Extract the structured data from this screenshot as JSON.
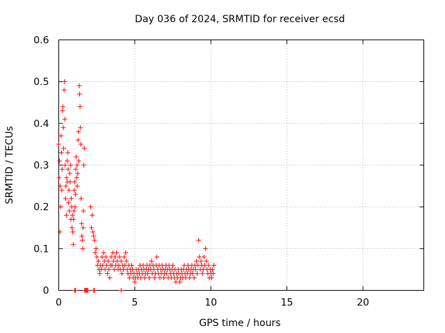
{
  "chart_data": {
    "type": "scatter",
    "title": "Day 036 of 2024, SRMTID for receiver ecsd",
    "xlabel": "GPS time / hours",
    "ylabel": "SRMTID / TECUs",
    "xlim": [
      0,
      24
    ],
    "ylim": [
      0,
      0.6
    ],
    "xticks": [
      0,
      5,
      10,
      15,
      20
    ],
    "yticks": [
      0,
      0.1,
      0.2,
      0.3,
      0.4,
      0.5,
      0.6
    ],
    "xtick_labels": [
      "0",
      "5",
      "10",
      "15",
      "20"
    ],
    "ytick_labels": [
      "0",
      "0.1",
      "0.2",
      "0.3",
      "0.4",
      "0.5",
      "0.6"
    ],
    "grid": true,
    "marker": "+",
    "color": "#ff0000",
    "series": [
      {
        "name": "SRMTID",
        "points": [
          [
            0.0,
            0.35
          ],
          [
            0.02,
            0.27
          ],
          [
            0.05,
            0.31
          ],
          [
            0.08,
            0.14
          ],
          [
            0.1,
            0.25
          ],
          [
            0.12,
            0.2
          ],
          [
            0.15,
            0.37
          ],
          [
            0.18,
            0.33
          ],
          [
            0.2,
            0.24
          ],
          [
            0.22,
            0.29
          ],
          [
            0.25,
            0.43
          ],
          [
            0.27,
            0.44
          ],
          [
            0.3,
            0.39
          ],
          [
            0.32,
            0.34
          ],
          [
            0.35,
            0.48
          ],
          [
            0.37,
            0.5
          ],
          [
            0.4,
            0.41
          ],
          [
            0.42,
            0.3
          ],
          [
            0.45,
            0.22
          ],
          [
            0.47,
            0.25
          ],
          [
            0.5,
            0.18
          ],
          [
            0.52,
            0.27
          ],
          [
            0.55,
            0.31
          ],
          [
            0.57,
            0.26
          ],
          [
            0.6,
            0.33
          ],
          [
            0.62,
            0.29
          ],
          [
            0.65,
            0.21
          ],
          [
            0.67,
            0.24
          ],
          [
            0.7,
            0.19
          ],
          [
            0.72,
            0.28
          ],
          [
            0.75,
            0.26
          ],
          [
            0.78,
            0.3
          ],
          [
            0.8,
            0.17
          ],
          [
            0.82,
            0.22
          ],
          [
            0.85,
            0.2
          ],
          [
            0.87,
            0.15
          ],
          [
            0.9,
            0.18
          ],
          [
            0.92,
            0.14
          ],
          [
            0.95,
            0.11
          ],
          [
            0.98,
            0.17
          ],
          [
            1.0,
            0.19
          ],
          [
            1.02,
            0.24
          ],
          [
            1.05,
            0.26
          ],
          [
            1.07,
            0.2
          ],
          [
            1.1,
            0.23
          ],
          [
            1.12,
            0.29
          ],
          [
            1.15,
            0.32
          ],
          [
            1.18,
            0.27
          ],
          [
            1.2,
            0.3
          ],
          [
            1.22,
            0.25
          ],
          [
            1.25,
            0.28
          ],
          [
            1.27,
            0.36
          ],
          [
            1.3,
            0.38
          ],
          [
            1.32,
            0.31
          ],
          [
            1.35,
            0.49
          ],
          [
            1.37,
            0.47
          ],
          [
            1.4,
            0.44
          ],
          [
            1.42,
            0.39
          ],
          [
            1.45,
            0.35
          ],
          [
            1.47,
            0.22
          ],
          [
            1.5,
            0.16
          ],
          [
            1.52,
            0.13
          ],
          [
            1.55,
            0.12
          ],
          [
            1.58,
            0.1
          ],
          [
            1.6,
            0.15
          ],
          [
            1.62,
            0.19
          ],
          [
            1.65,
            0.3
          ],
          [
            1.68,
            0.34
          ],
          [
            1.7,
            0.0
          ],
          [
            1.75,
            0.0
          ],
          [
            1.8,
            0.0
          ],
          [
            1.85,
            0.0
          ],
          [
            1.9,
            0.0
          ],
          [
            2.3,
            0.0
          ],
          [
            2.35,
            0.0
          ],
          [
            1.05,
            0.0
          ],
          [
            1.1,
            0.0
          ],
          [
            4.1,
            0.0
          ],
          [
            2.1,
            0.2
          ],
          [
            2.15,
            0.15
          ],
          [
            2.2,
            0.18
          ],
          [
            2.25,
            0.14
          ],
          [
            2.3,
            0.13
          ],
          [
            2.35,
            0.12
          ],
          [
            2.4,
            0.09
          ],
          [
            2.45,
            0.1
          ],
          [
            2.5,
            0.08
          ],
          [
            2.55,
            0.06
          ],
          [
            2.6,
            0.07
          ],
          [
            2.65,
            0.05
          ],
          [
            2.7,
            0.04
          ],
          [
            2.75,
            0.06
          ],
          [
            2.8,
            0.05
          ],
          [
            2.85,
            0.08
          ],
          [
            2.9,
            0.06
          ],
          [
            2.95,
            0.09
          ],
          [
            3.0,
            0.07
          ],
          [
            3.05,
            0.05
          ],
          [
            3.1,
            0.08
          ],
          [
            3.15,
            0.06
          ],
          [
            3.2,
            0.04
          ],
          [
            3.25,
            0.07
          ],
          [
            3.3,
            0.05
          ],
          [
            3.35,
            0.03
          ],
          [
            3.4,
            0.06
          ],
          [
            3.45,
            0.08
          ],
          [
            3.5,
            0.06
          ],
          [
            3.55,
            0.09
          ],
          [
            3.6,
            0.07
          ],
          [
            3.65,
            0.05
          ],
          [
            3.7,
            0.08
          ],
          [
            3.75,
            0.06
          ],
          [
            3.8,
            0.09
          ],
          [
            3.85,
            0.07
          ],
          [
            3.9,
            0.05
          ],
          [
            3.95,
            0.06
          ],
          [
            4.0,
            0.08
          ],
          [
            4.05,
            0.05
          ],
          [
            4.1,
            0.07
          ],
          [
            4.15,
            0.04
          ],
          [
            4.2,
            0.06
          ],
          [
            4.25,
            0.05
          ],
          [
            4.3,
            0.08
          ],
          [
            4.35,
            0.06
          ],
          [
            4.4,
            0.09
          ],
          [
            4.45,
            0.07
          ],
          [
            4.5,
            0.05
          ],
          [
            4.55,
            0.04
          ],
          [
            4.6,
            0.06
          ],
          [
            4.65,
            0.03
          ],
          [
            4.7,
            0.05
          ],
          [
            4.75,
            0.04
          ],
          [
            4.8,
            0.06
          ],
          [
            4.85,
            0.05
          ],
          [
            4.9,
            0.03
          ],
          [
            4.95,
            0.04
          ],
          [
            5.0,
            0.02
          ],
          [
            5.05,
            0.03
          ],
          [
            5.1,
            0.05
          ],
          [
            5.15,
            0.04
          ],
          [
            5.2,
            0.03
          ],
          [
            5.25,
            0.05
          ],
          [
            5.3,
            0.04
          ],
          [
            5.35,
            0.06
          ],
          [
            5.4,
            0.03
          ],
          [
            5.45,
            0.05
          ],
          [
            5.5,
            0.04
          ],
          [
            5.55,
            0.06
          ],
          [
            5.6,
            0.05
          ],
          [
            5.65,
            0.03
          ],
          [
            5.7,
            0.04
          ],
          [
            5.75,
            0.05
          ],
          [
            5.8,
            0.06
          ],
          [
            5.85,
            0.04
          ],
          [
            5.9,
            0.05
          ],
          [
            5.95,
            0.03
          ],
          [
            6.0,
            0.06
          ],
          [
            6.05,
            0.05
          ],
          [
            6.1,
            0.07
          ],
          [
            6.15,
            0.04
          ],
          [
            6.2,
            0.06
          ],
          [
            6.25,
            0.05
          ],
          [
            6.3,
            0.03
          ],
          [
            6.35,
            0.04
          ],
          [
            6.4,
            0.06
          ],
          [
            6.45,
            0.08
          ],
          [
            6.5,
            0.05
          ],
          [
            6.55,
            0.04
          ],
          [
            6.6,
            0.06
          ],
          [
            6.65,
            0.03
          ],
          [
            6.7,
            0.05
          ],
          [
            6.75,
            0.04
          ],
          [
            6.8,
            0.06
          ],
          [
            6.85,
            0.05
          ],
          [
            6.9,
            0.03
          ],
          [
            6.95,
            0.04
          ],
          [
            7.0,
            0.05
          ],
          [
            7.05,
            0.06
          ],
          [
            7.1,
            0.04
          ],
          [
            7.15,
            0.05
          ],
          [
            7.2,
            0.03
          ],
          [
            7.25,
            0.06
          ],
          [
            7.3,
            0.05
          ],
          [
            7.35,
            0.04
          ],
          [
            7.4,
            0.03
          ],
          [
            7.45,
            0.05
          ],
          [
            7.5,
            0.06
          ],
          [
            7.55,
            0.04
          ],
          [
            7.6,
            0.03
          ],
          [
            7.65,
            0.05
          ],
          [
            7.7,
            0.02
          ],
          [
            7.75,
            0.04
          ],
          [
            7.8,
            0.03
          ],
          [
            7.85,
            0.05
          ],
          [
            7.9,
            0.04
          ],
          [
            7.95,
            0.02
          ],
          [
            8.0,
            0.03
          ],
          [
            8.05,
            0.05
          ],
          [
            8.1,
            0.04
          ],
          [
            8.15,
            0.03
          ],
          [
            8.2,
            0.05
          ],
          [
            8.25,
            0.06
          ],
          [
            8.3,
            0.04
          ],
          [
            8.35,
            0.03
          ],
          [
            8.4,
            0.05
          ],
          [
            8.45,
            0.04
          ],
          [
            8.5,
            0.06
          ],
          [
            8.55,
            0.05
          ],
          [
            8.6,
            0.03
          ],
          [
            8.65,
            0.04
          ],
          [
            8.7,
            0.05
          ],
          [
            8.75,
            0.06
          ],
          [
            8.8,
            0.04
          ],
          [
            8.85,
            0.05
          ],
          [
            8.9,
            0.03
          ],
          [
            8.95,
            0.06
          ],
          [
            9.0,
            0.05
          ],
          [
            9.05,
            0.07
          ],
          [
            9.1,
            0.04
          ],
          [
            9.15,
            0.06
          ],
          [
            9.2,
            0.12
          ],
          [
            9.25,
            0.08
          ],
          [
            9.3,
            0.05
          ],
          [
            9.35,
            0.07
          ],
          [
            9.4,
            0.06
          ],
          [
            9.45,
            0.04
          ],
          [
            9.5,
            0.05
          ],
          [
            9.55,
            0.08
          ],
          [
            9.6,
            0.06
          ],
          [
            9.65,
            0.1
          ],
          [
            9.7,
            0.07
          ],
          [
            9.75,
            0.05
          ],
          [
            9.8,
            0.04
          ],
          [
            9.85,
            0.06
          ],
          [
            9.9,
            0.03
          ],
          [
            9.95,
            0.05
          ],
          [
            10.0,
            0.04
          ],
          [
            10.05,
            0.03
          ],
          [
            10.1,
            0.05
          ],
          [
            10.15,
            0.04
          ],
          [
            10.2,
            0.06
          ]
        ]
      }
    ]
  }
}
